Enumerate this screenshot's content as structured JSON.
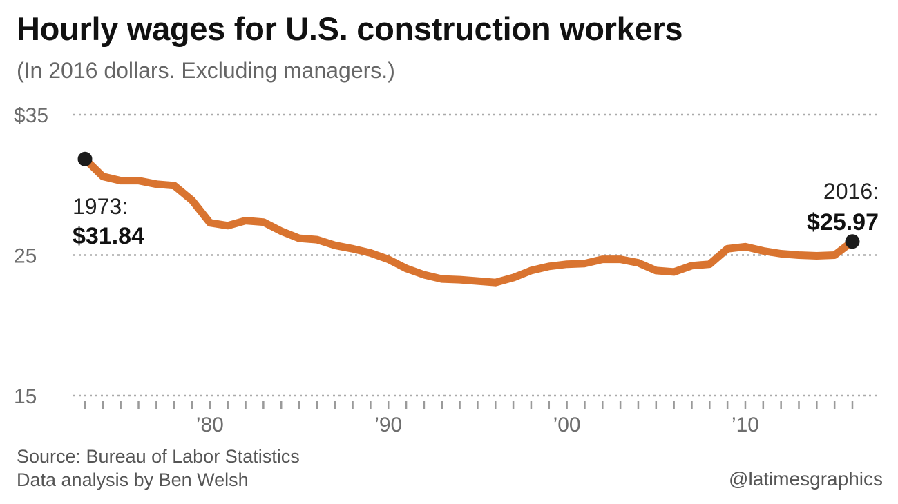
{
  "header": {
    "title": "Hourly wages for U.S. construction workers",
    "subtitle": "(In 2016 dollars. Excluding managers.)"
  },
  "footer": {
    "source": "Source: Bureau of Labor Statistics",
    "analysis": "Data analysis by Ben Welsh",
    "credit": "@latimesgraphics"
  },
  "colors": {
    "line": "#d97430",
    "marker": "#1c1c1c",
    "grid": "#aaaaaa",
    "text_muted": "#6d6d6d"
  },
  "chart_data": {
    "type": "line",
    "title": "Hourly wages for U.S. construction workers",
    "subtitle": "(In 2016 dollars. Excluding managers.)",
    "xlabel": "",
    "ylabel": "",
    "xlim": [
      1973,
      2016
    ],
    "ylim": [
      15,
      35
    ],
    "grid": true,
    "y_ticks": [
      {
        "value": 35,
        "label": "$35"
      },
      {
        "value": 25,
        "label": "25"
      },
      {
        "value": 15,
        "label": "15"
      }
    ],
    "x_ticks": [
      {
        "value": 1980,
        "label": "’80"
      },
      {
        "value": 1990,
        "label": "’90"
      },
      {
        "value": 2000,
        "label": "’00"
      },
      {
        "value": 2010,
        "label": "’10"
      }
    ],
    "x": [
      1973,
      1974,
      1975,
      1976,
      1977,
      1978,
      1979,
      1980,
      1981,
      1982,
      1983,
      1984,
      1985,
      1986,
      1987,
      1988,
      1989,
      1990,
      1991,
      1992,
      1993,
      1994,
      1995,
      1996,
      1997,
      1998,
      1999,
      2000,
      2001,
      2002,
      2003,
      2004,
      2005,
      2006,
      2007,
      2008,
      2009,
      2010,
      2011,
      2012,
      2013,
      2014,
      2015,
      2016
    ],
    "series": [
      {
        "values": [
          31.84,
          30.6,
          30.3,
          30.3,
          30.05,
          29.95,
          28.9,
          27.3,
          27.1,
          27.45,
          27.35,
          26.7,
          26.2,
          26.1,
          25.7,
          25.45,
          25.15,
          24.7,
          24.05,
          23.6,
          23.3,
          23.25,
          23.15,
          23.05,
          23.4,
          23.9,
          24.2,
          24.35,
          24.4,
          24.7,
          24.7,
          24.45,
          23.9,
          23.8,
          24.25,
          24.35,
          25.45,
          25.6,
          25.3,
          25.1,
          25.0,
          24.95,
          25.0,
          25.97
        ]
      }
    ],
    "annotations": [
      {
        "x": 1973,
        "y": 31.84,
        "year_label": "1973:",
        "value_label": "$31.84"
      },
      {
        "x": 2016,
        "y": 25.97,
        "year_label": "2016:",
        "value_label": "$25.97"
      }
    ]
  }
}
